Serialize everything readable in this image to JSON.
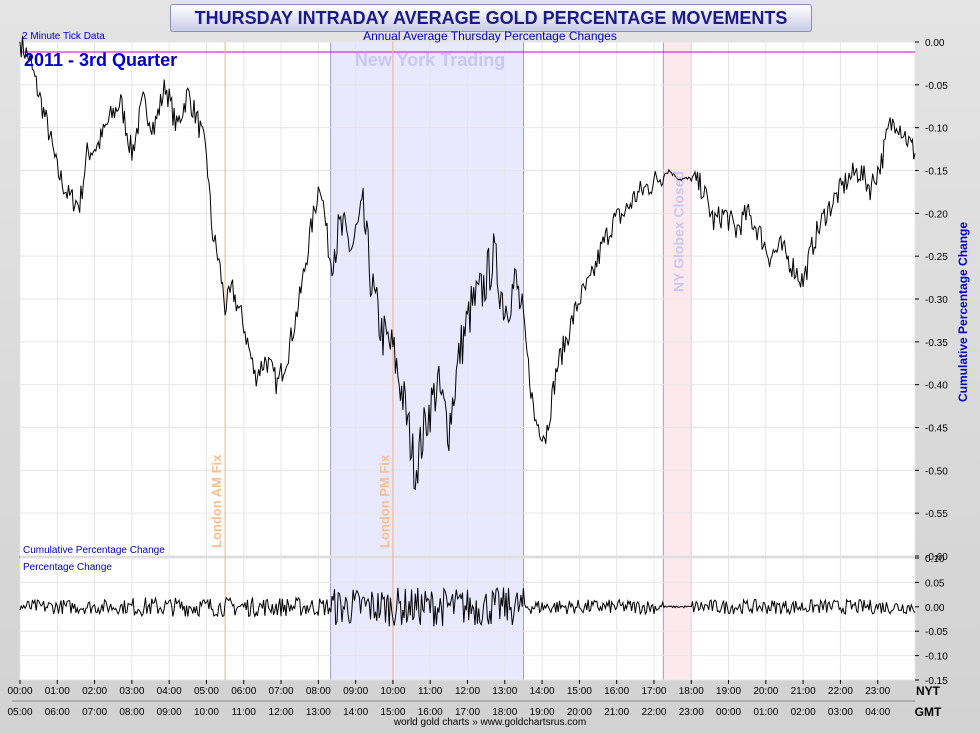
{
  "header": {
    "title": "THURSDAY INTRADAY AVERAGE GOLD PERCENTAGE MOVEMENTS",
    "subtitle": "Annual Average Thursday Percentage Changes",
    "tick_note": "2 Minute Tick Data",
    "period": "2011 - 3rd Quarter"
  },
  "footer": {
    "credit": "world gold charts » www.goldchartsrus.com"
  },
  "colors": {
    "title_text": "#1a1a8c",
    "label_blue": "#0000cc",
    "ny_band": "#e8e8ff",
    "ny_band_border": "#8888cc",
    "globex_band": "#fde8ee",
    "fix_line": "#f0b080",
    "fix_text": "#f5c090",
    "ny_text": "#c8c8f0",
    "zero_line": "#cc00cc",
    "series": "#000000"
  },
  "chart_data": [
    {
      "type": "line",
      "panel": "upper",
      "title": "Cumulative Percentage Change",
      "ylabel": "Cumulative Percentage Change",
      "ylim": [
        -0.6,
        0.0
      ],
      "yticks": [
        "0.00",
        "-0.05",
        "-0.10",
        "-0.15",
        "-0.20",
        "-0.25",
        "-0.30",
        "-0.35",
        "-0.40",
        "-0.45",
        "-0.50",
        "-0.55",
        "-0.60"
      ],
      "xlim": [
        0,
        24
      ],
      "x_nyt_labels": [
        "00:00",
        "01:00",
        "02:00",
        "03:00",
        "04:00",
        "05:00",
        "06:00",
        "07:00",
        "08:00",
        "09:00",
        "10:00",
        "11:00",
        "12:00",
        "13:00",
        "14:00",
        "15:00",
        "16:00",
        "17:00",
        "18:00",
        "19:00",
        "20:00",
        "21:00",
        "22:00",
        "23:00"
      ],
      "x_gmt_labels": [
        "05:00",
        "06:00",
        "07:00",
        "08:00",
        "09:00",
        "10:00",
        "11:00",
        "12:00",
        "13:00",
        "14:00",
        "15:00",
        "16:00",
        "17:00",
        "18:00",
        "19:00",
        "20:00",
        "21:00",
        "22:00",
        "23:00",
        "00:00",
        "01:00",
        "02:00",
        "03:00",
        "04:00"
      ],
      "timezone_labels": {
        "top": "NYT",
        "bottom": "GMT"
      },
      "annotations": {
        "london_am": "London AM Fix",
        "london_pm": "London PM Fix",
        "ny_trading": "New York Trading",
        "globex": "NY Globex Closed"
      },
      "markers": {
        "london_am_hour": 5.5,
        "london_pm_hour": 10.0,
        "ny_start_hour": 8.33,
        "ny_end_hour": 13.5,
        "globex_start_hour": 17.25,
        "globex_end_hour": 18.0
      },
      "keypoints": [
        [
          0.0,
          0.0
        ],
        [
          0.25,
          -0.02
        ],
        [
          0.5,
          -0.06
        ],
        [
          0.75,
          -0.1
        ],
        [
          1.0,
          -0.15
        ],
        [
          1.3,
          -0.18
        ],
        [
          1.6,
          -0.19
        ],
        [
          1.8,
          -0.13
        ],
        [
          2.1,
          -0.12
        ],
        [
          2.4,
          -0.09
        ],
        [
          2.7,
          -0.07
        ],
        [
          3.0,
          -0.13
        ],
        [
          3.3,
          -0.07
        ],
        [
          3.6,
          -0.1
        ],
        [
          3.9,
          -0.05
        ],
        [
          4.2,
          -0.1
        ],
        [
          4.5,
          -0.06
        ],
        [
          4.75,
          -0.09
        ],
        [
          5.0,
          -0.13
        ],
        [
          5.15,
          -0.22
        ],
        [
          5.35,
          -0.26
        ],
        [
          5.5,
          -0.31
        ],
        [
          5.7,
          -0.29
        ],
        [
          6.0,
          -0.33
        ],
        [
          6.3,
          -0.39
        ],
        [
          6.6,
          -0.37
        ],
        [
          6.9,
          -0.4
        ],
        [
          7.2,
          -0.36
        ],
        [
          7.5,
          -0.3
        ],
        [
          7.8,
          -0.22
        ],
        [
          8.05,
          -0.16
        ],
        [
          8.3,
          -0.25
        ],
        [
          8.6,
          -0.22
        ],
        [
          8.9,
          -0.24
        ],
        [
          9.2,
          -0.2
        ],
        [
          9.45,
          -0.29
        ],
        [
          9.7,
          -0.34
        ],
        [
          10.0,
          -0.36
        ],
        [
          10.3,
          -0.42
        ],
        [
          10.6,
          -0.5
        ],
        [
          10.9,
          -0.44
        ],
        [
          11.2,
          -0.4
        ],
        [
          11.5,
          -0.45
        ],
        [
          11.8,
          -0.36
        ],
        [
          12.1,
          -0.31
        ],
        [
          12.4,
          -0.29
        ],
        [
          12.7,
          -0.25
        ],
        [
          13.0,
          -0.31
        ],
        [
          13.3,
          -0.28
        ],
        [
          13.5,
          -0.33
        ],
        [
          13.8,
          -0.44
        ],
        [
          14.1,
          -0.46
        ],
        [
          14.4,
          -0.38
        ],
        [
          14.7,
          -0.34
        ],
        [
          15.0,
          -0.3
        ],
        [
          15.3,
          -0.28
        ],
        [
          15.6,
          -0.24
        ],
        [
          15.9,
          -0.21
        ],
        [
          16.2,
          -0.2
        ],
        [
          16.5,
          -0.18
        ],
        [
          16.8,
          -0.17
        ],
        [
          17.1,
          -0.16
        ],
        [
          17.4,
          -0.15
        ],
        [
          17.7,
          -0.16
        ],
        [
          18.0,
          -0.16
        ],
        [
          18.3,
          -0.17
        ],
        [
          18.6,
          -0.21
        ],
        [
          18.9,
          -0.2
        ],
        [
          19.2,
          -0.22
        ],
        [
          19.5,
          -0.2
        ],
        [
          19.8,
          -0.22
        ],
        [
          20.1,
          -0.25
        ],
        [
          20.4,
          -0.24
        ],
        [
          20.7,
          -0.26
        ],
        [
          21.0,
          -0.28
        ],
        [
          21.3,
          -0.23
        ],
        [
          21.6,
          -0.2
        ],
        [
          21.9,
          -0.18
        ],
        [
          22.2,
          -0.16
        ],
        [
          22.5,
          -0.15
        ],
        [
          22.8,
          -0.17
        ],
        [
          23.1,
          -0.14
        ],
        [
          23.3,
          -0.1
        ],
        [
          23.5,
          -0.09
        ],
        [
          23.75,
          -0.11
        ],
        [
          24.0,
          -0.13
        ]
      ]
    },
    {
      "type": "line",
      "panel": "lower",
      "title": "Percentage Change",
      "ylim": [
        -0.15,
        0.1
      ],
      "yticks": [
        "0.10",
        "0.05",
        "0.00",
        "-0.05",
        "-0.10",
        "-0.15"
      ],
      "xlim": [
        0,
        24
      ],
      "noise_amplitude": {
        "asian": 0.015,
        "london": 0.02,
        "new_york": 0.04,
        "globex_closed": 0.002
      }
    }
  ]
}
